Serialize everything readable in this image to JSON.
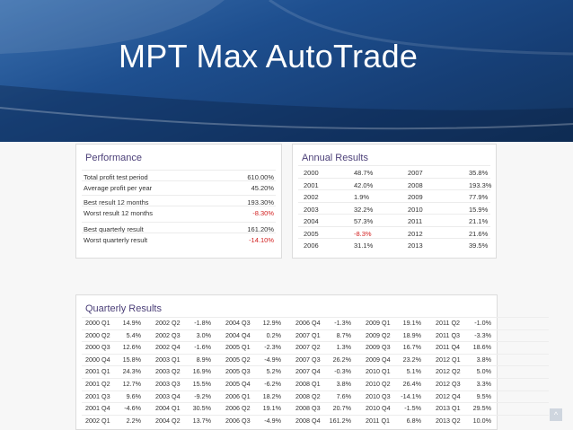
{
  "slide": {
    "title": "MPT Max AutoTrade"
  },
  "performance": {
    "title": "Performance",
    "rows": [
      {
        "label": "Total profit test period",
        "value": "610.00%",
        "neg": false
      },
      {
        "label": "Average profit per year",
        "value": "45.20%",
        "neg": false
      },
      {
        "label": "Best result 12 months",
        "value": "193.30%",
        "neg": false
      },
      {
        "label": "Worst result 12 months",
        "value": "-8.30%",
        "neg": true
      },
      {
        "label": "Best quarterly result",
        "value": "161.20%",
        "neg": false
      },
      {
        "label": "Worst quarterly result",
        "value": "-14.10%",
        "neg": true
      }
    ]
  },
  "annual": {
    "title": "Annual Results",
    "rows": [
      {
        "y1": "2000",
        "v1": "48.7%",
        "y2": "2007",
        "v2": "35.8%"
      },
      {
        "y1": "2001",
        "v1": "42.0%",
        "y2": "2008",
        "v2": "193.3%"
      },
      {
        "y1": "2002",
        "v1": "1.9%",
        "y2": "2009",
        "v2": "77.9%"
      },
      {
        "y1": "2003",
        "v1": "32.2%",
        "y2": "2010",
        "v2": "15.9%"
      },
      {
        "y1": "2004",
        "v1": "57.3%",
        "y2": "2011",
        "v2": "21.1%"
      },
      {
        "y1": "2005",
        "v1": "-8.3%",
        "y2": "2012",
        "v2": "21.6%"
      },
      {
        "y1": "2006",
        "v1": "31.1%",
        "y2": "2013",
        "v2": "39.5%"
      }
    ]
  },
  "quarterly": {
    "title": "Quarterly Results",
    "rows": [
      [
        [
          "2000 Q1",
          "14.9%"
        ],
        [
          "2002 Q2",
          "-1.8%"
        ],
        [
          "2004 Q3",
          "12.9%"
        ],
        [
          "2006 Q4",
          "-1.3%"
        ],
        [
          "2009 Q1",
          "19.1%"
        ],
        [
          "2011 Q2",
          "-1.0%"
        ]
      ],
      [
        [
          "2000 Q2",
          "5.4%"
        ],
        [
          "2002 Q3",
          "3.0%"
        ],
        [
          "2004 Q4",
          "0.2%"
        ],
        [
          "2007 Q1",
          "8.7%"
        ],
        [
          "2009 Q2",
          "18.9%"
        ],
        [
          "2011 Q3",
          "-3.3%"
        ]
      ],
      [
        [
          "2000 Q3",
          "12.6%"
        ],
        [
          "2002 Q4",
          "-1.6%"
        ],
        [
          "2005 Q1",
          "-2.3%"
        ],
        [
          "2007 Q2",
          "1.3%"
        ],
        [
          "2009 Q3",
          "16.7%"
        ],
        [
          "2011 Q4",
          "18.6%"
        ]
      ],
      [
        [
          "2000 Q4",
          "15.8%"
        ],
        [
          "2003 Q1",
          "8.9%"
        ],
        [
          "2005 Q2",
          "-4.9%"
        ],
        [
          "2007 Q3",
          "26.2%"
        ],
        [
          "2009 Q4",
          "23.2%"
        ],
        [
          "2012 Q1",
          "3.8%"
        ]
      ],
      [
        [
          "2001 Q1",
          "24.3%"
        ],
        [
          "2003 Q2",
          "16.9%"
        ],
        [
          "2005 Q3",
          "5.2%"
        ],
        [
          "2007 Q4",
          "-0.3%"
        ],
        [
          "2010 Q1",
          "5.1%"
        ],
        [
          "2012 Q2",
          "5.0%"
        ]
      ],
      [
        [
          "2001 Q2",
          "12.7%"
        ],
        [
          "2003 Q3",
          "15.5%"
        ],
        [
          "2005 Q4",
          "-6.2%"
        ],
        [
          "2008 Q1",
          "3.8%"
        ],
        [
          "2010 Q2",
          "26.4%"
        ],
        [
          "2012 Q3",
          "3.3%"
        ]
      ],
      [
        [
          "2001 Q3",
          "9.6%"
        ],
        [
          "2003 Q4",
          "-9.2%"
        ],
        [
          "2006 Q1",
          "18.2%"
        ],
        [
          "2008 Q2",
          "7.6%"
        ],
        [
          "2010 Q3",
          "-14.1%"
        ],
        [
          "2012 Q4",
          "9.5%"
        ]
      ],
      [
        [
          "2001 Q4",
          "-4.6%"
        ],
        [
          "2004 Q1",
          "30.5%"
        ],
        [
          "2006 Q2",
          "19.1%"
        ],
        [
          "2008 Q3",
          "20.7%"
        ],
        [
          "2010 Q4",
          "-1.5%"
        ],
        [
          "2013 Q1",
          "29.5%"
        ]
      ],
      [
        [
          "2002 Q1",
          "2.2%"
        ],
        [
          "2004 Q2",
          "13.7%"
        ],
        [
          "2006 Q3",
          "-4.9%"
        ],
        [
          "2008 Q4",
          "161.2%"
        ],
        [
          "2011 Q1",
          "6.8%"
        ],
        [
          "2013 Q2",
          "10.0%"
        ]
      ]
    ]
  },
  "icons": {
    "scroll_top": "chevron-up-icon",
    "glyph": "^"
  },
  "colors": {
    "header": "#1e4f8f",
    "panel_title": "#4b3f78",
    "negative": "#d21f1f"
  }
}
